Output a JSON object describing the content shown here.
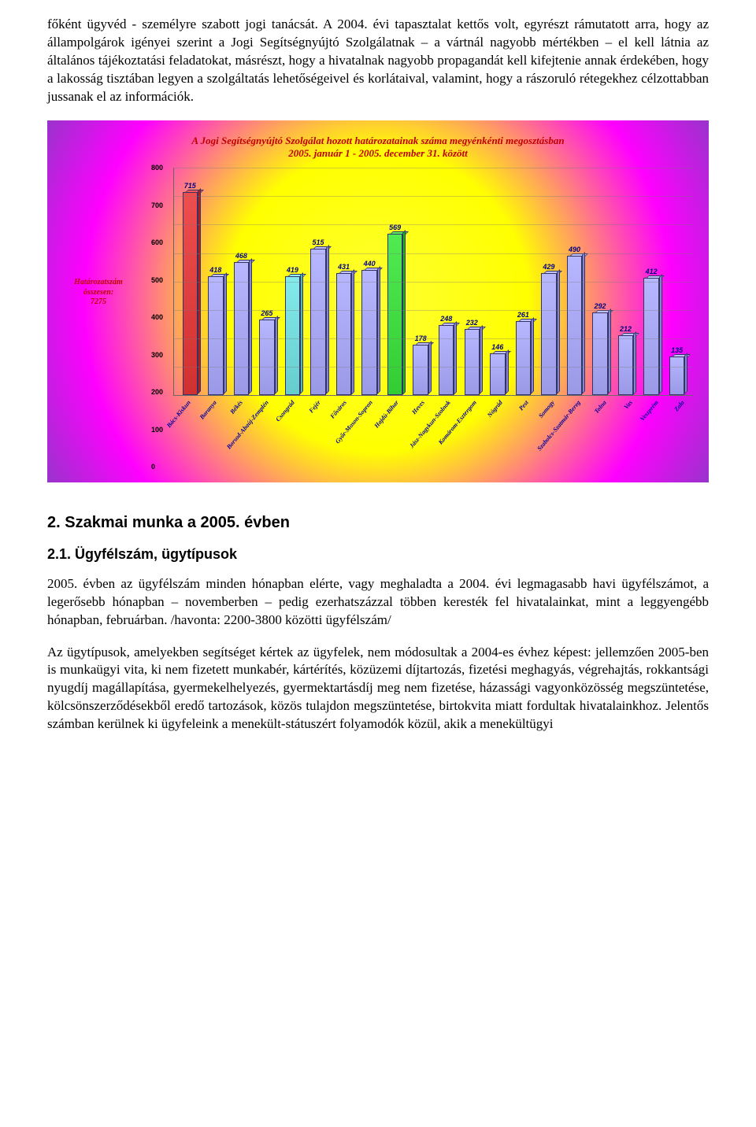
{
  "paragraphs": {
    "intro": "főként ügyvéd - személyre szabott jogi tanácsát. A 2004. évi tapasztalat kettős volt, egyrészt rámutatott arra, hogy az állampolgárok igényei szerint a Jogi Segítségnyújtó Szolgálatnak – a vártnál nagyobb mértékben – el kell látnia az általános tájékoztatási feladatokat, másrészt, hogy a hivatalnak nagyobb propagandát kell kifejtenie annak érdekében, hogy a lakosság tisztában legyen a szolgáltatás lehetőségeivel és korlátaival, valamint, hogy a rászoruló rétegekhez célzottabban jussanak el az információk.",
    "p2": "2005. évben az ügyfélszám minden hónapban elérte, vagy meghaladta a 2004. évi legmagasabb havi ügyfélszámot, a legerősebb hónapban – novemberben – pedig ezerhatszázzal többen keresték fel hivatalainkat, mint a leggyengébb hónapban, februárban. /havonta: 2200-3800 közötti ügyfélszám/",
    "p3": "Az ügytípusok, amelyekben segítséget kértek az ügyfelek, nem módosultak a 2004-es évhez képest: jellemzően 2005-ben is munkaügyi vita, ki nem fizetett munkabér, kártérítés, közüzemi díjtartozás, fizetési meghagyás, végrehajtás, rokkantsági nyugdíj magállapítása, gyermekelhelyezés, gyermektartásdíj meg nem fizetése, házassági vagyonközösség megszüntetése, kölcsönszerződésekből eredő tartozások, közös tulajdon megszüntetése, birtokvita miatt fordultak hivatalainkhoz. Jelentős számban kerülnek ki ügyfeleink a menekült-státuszért folyamodók közül, akik a menekültügyi"
  },
  "headings": {
    "h2": "2. Szakmai munka a 2005. évben",
    "h3": "2.1. Ügyfélszám, ügytípusok"
  },
  "chart": {
    "type": "bar",
    "title_line1": "A Jogi Segítségnyújtó Szolgálat hozott határozatainak száma megyénkénti megosztásban",
    "title_line2": "2005. január 1 - 2005. december 31. között",
    "left_label_line1": "Határozatszám összesen:",
    "left_label_line2": "7275",
    "ylim": [
      0,
      800
    ],
    "ytick_step": 100,
    "categories": [
      "Bács-Kiskun",
      "Baranya",
      "Békés",
      "Borsod-Abaúj-Zemplén",
      "Csongrád",
      "Fejér",
      "Főváros",
      "Győr-Moson-Sopron",
      "Hajdú-Bihar",
      "Heves",
      "Jász-Nagykun-Szolnok",
      "Komárom-Esztergom",
      "Nógrád",
      "Pest",
      "Somogy",
      "Szabolcs-Szatmár-Bereg",
      "Tolna",
      "Vas",
      "Veszprém",
      "Zala"
    ],
    "values": [
      715,
      418,
      468,
      265,
      419,
      515,
      431,
      440,
      569,
      178,
      248,
      232,
      146,
      261,
      429,
      490,
      292,
      212,
      412,
      135
    ],
    "bar_colors": [
      "#d03030",
      "#9999e6",
      "#9999e6",
      "#9999e6",
      "#66cccc",
      "#9999e6",
      "#9999e6",
      "#9999e6",
      "#33cc33",
      "#9999e6",
      "#9999e6",
      "#9999e6",
      "#9999e6",
      "#9999e6",
      "#9999e6",
      "#9999e6",
      "#9999e6",
      "#9999e6",
      "#9999e6",
      "#9999e6"
    ],
    "bar_border": "#333366",
    "value_label_color": "#000080",
    "title_color": "#c00000",
    "grid_color": "rgba(120,120,120,0.35)",
    "title_fontsize": 13,
    "label_fontsize": 8
  }
}
